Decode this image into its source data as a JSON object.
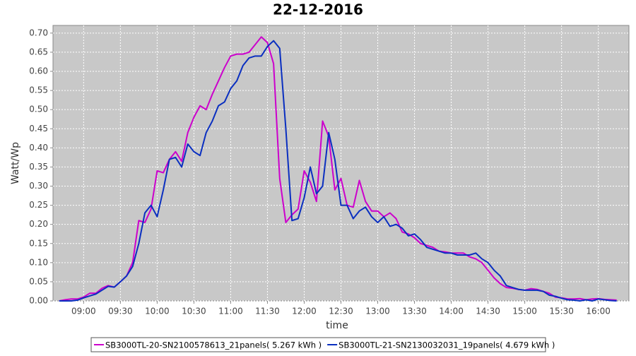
{
  "chart_data": {
    "type": "line",
    "title": "22-12-2016",
    "x_label": "time",
    "y_label": "Watt/Wp",
    "x": [
      "08:40",
      "08:45",
      "08:50",
      "08:55",
      "09:00",
      "09:05",
      "09:10",
      "09:15",
      "09:20",
      "09:25",
      "09:30",
      "09:35",
      "09:40",
      "09:45",
      "09:50",
      "09:55",
      "10:00",
      "10:05",
      "10:10",
      "10:15",
      "10:20",
      "10:25",
      "10:30",
      "10:35",
      "10:40",
      "10:45",
      "10:50",
      "10:55",
      "11:00",
      "11:05",
      "11:10",
      "11:15",
      "11:20",
      "11:25",
      "11:30",
      "11:35",
      "11:40",
      "11:45",
      "11:50",
      "11:55",
      "12:00",
      "12:05",
      "12:10",
      "12:15",
      "12:20",
      "12:25",
      "12:30",
      "12:35",
      "12:40",
      "12:45",
      "12:50",
      "12:55",
      "13:00",
      "13:05",
      "13:10",
      "13:15",
      "13:20",
      "13:25",
      "13:30",
      "13:35",
      "13:40",
      "13:45",
      "13:50",
      "13:55",
      "14:00",
      "14:05",
      "14:10",
      "14:15",
      "14:20",
      "14:25",
      "14:30",
      "14:35",
      "14:40",
      "14:45",
      "14:50",
      "14:55",
      "15:00",
      "15:05",
      "15:10",
      "15:15",
      "15:20",
      "15:25",
      "15:30",
      "15:35",
      "15:40",
      "15:45",
      "15:50",
      "15:55",
      "16:00",
      "16:05",
      "16:10",
      "16:15"
    ],
    "series": [
      {
        "name": "SB3000TL-20-SN2100578613_21panels( 5.267 kWh )",
        "color": "#cc00cc",
        "values": [
          0.0,
          0.003,
          0.005,
          0.005,
          0.01,
          0.02,
          0.02,
          0.033,
          0.04,
          0.036,
          0.05,
          0.065,
          0.1,
          0.21,
          0.205,
          0.24,
          0.34,
          0.335,
          0.37,
          0.39,
          0.365,
          0.44,
          0.48,
          0.51,
          0.5,
          0.54,
          0.575,
          0.61,
          0.64,
          0.645,
          0.645,
          0.65,
          0.67,
          0.69,
          0.675,
          0.62,
          0.32,
          0.205,
          0.225,
          0.24,
          0.34,
          0.31,
          0.26,
          0.47,
          0.43,
          0.29,
          0.32,
          0.25,
          0.245,
          0.315,
          0.26,
          0.235,
          0.235,
          0.22,
          0.23,
          0.215,
          0.18,
          0.175,
          0.165,
          0.15,
          0.145,
          0.14,
          0.13,
          0.128,
          0.125,
          0.125,
          0.125,
          0.115,
          0.11,
          0.1,
          0.08,
          0.06,
          0.045,
          0.035,
          0.033,
          0.03,
          0.028,
          0.032,
          0.03,
          0.025,
          0.02,
          0.01,
          0.008,
          0.005,
          0.005,
          0.006,
          0.003,
          0.005,
          0.006,
          0.004,
          0.003,
          0.002
        ]
      },
      {
        "name": "SB3000TL-21-SN2130032031_19panels( 4.679 kWh )",
        "color": "#0a2fc0",
        "values": [
          0.0,
          0.0,
          0.0,
          0.002,
          0.008,
          0.013,
          0.018,
          0.028,
          0.038,
          0.036,
          0.05,
          0.065,
          0.09,
          0.15,
          0.23,
          0.25,
          0.22,
          0.29,
          0.37,
          0.375,
          0.35,
          0.41,
          0.39,
          0.38,
          0.44,
          0.47,
          0.51,
          0.52,
          0.555,
          0.575,
          0.615,
          0.635,
          0.64,
          0.64,
          0.665,
          0.68,
          0.66,
          0.45,
          0.21,
          0.215,
          0.27,
          0.35,
          0.28,
          0.3,
          0.44,
          0.37,
          0.25,
          0.25,
          0.215,
          0.235,
          0.245,
          0.22,
          0.205,
          0.22,
          0.195,
          0.2,
          0.19,
          0.17,
          0.175,
          0.16,
          0.14,
          0.135,
          0.13,
          0.125,
          0.125,
          0.12,
          0.12,
          0.12,
          0.125,
          0.11,
          0.1,
          0.08,
          0.065,
          0.04,
          0.035,
          0.03,
          0.028,
          0.028,
          0.028,
          0.025,
          0.015,
          0.012,
          0.007,
          0.003,
          0.002,
          0.0,
          0.003,
          0.0,
          0.005,
          0.003,
          0.001,
          0.0
        ]
      }
    ],
    "xlim": [
      "08:35",
      "16:25"
    ],
    "xticks": [
      "09:00",
      "09:30",
      "10:00",
      "10:30",
      "11:00",
      "11:30",
      "12:00",
      "12:30",
      "13:00",
      "13:30",
      "14:00",
      "14:30",
      "15:00",
      "15:30",
      "16:00"
    ],
    "ylim": [
      0,
      0.72
    ],
    "yticks": [
      {
        "value": 0,
        "label": "0.00"
      },
      {
        "value": 0.05,
        "label": "0.05"
      },
      {
        "value": 0.1,
        "label": "0.10"
      },
      {
        "value": 0.15,
        "label": "0.15"
      },
      {
        "value": 0.2,
        "label": "0.20"
      },
      {
        "value": 0.25,
        "label": "0.25"
      },
      {
        "value": 0.3,
        "label": "0.30"
      },
      {
        "value": 0.35,
        "label": "0.35"
      },
      {
        "value": 0.4,
        "label": "0.40"
      },
      {
        "value": 0.45,
        "label": "0.45"
      },
      {
        "value": 0.5,
        "label": "0.50"
      },
      {
        "value": 0.55,
        "label": "0.55"
      },
      {
        "value": 0.6,
        "label": "0.60"
      },
      {
        "value": 0.65,
        "label": "0.65"
      },
      {
        "value": 0.7,
        "label": "0.70"
      }
    ],
    "grid": true,
    "legend": "bottom"
  }
}
